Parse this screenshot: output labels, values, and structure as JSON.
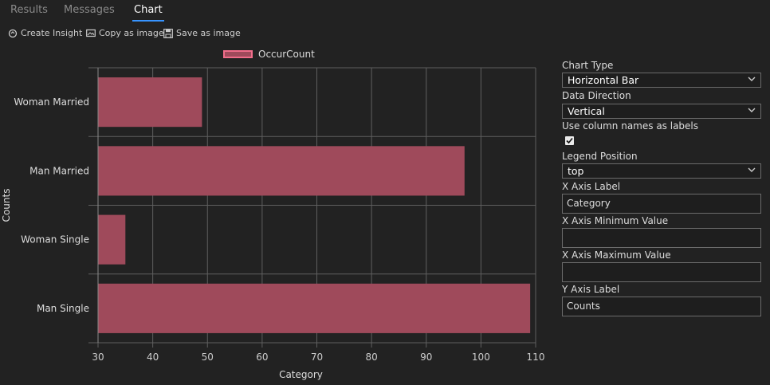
{
  "tabs": [
    {
      "label": "Results",
      "active": false
    },
    {
      "label": "Messages",
      "active": false
    },
    {
      "label": "Chart",
      "active": true
    }
  ],
  "toolbar": {
    "create_insight": "Create Insight",
    "copy_image": "Copy as image",
    "save_image": "Save as image"
  },
  "colors": {
    "accent": "#3794ff",
    "bar_fill": "#9f4a5b",
    "bar_border": "#f06d8a",
    "background": "#222222"
  },
  "chart_data": {
    "type": "bar",
    "orientation": "horizontal",
    "categories": [
      "Woman Married",
      "Man Married",
      "Woman Single",
      "Man Single"
    ],
    "series": [
      {
        "name": "OccurCount",
        "values": [
          49,
          97,
          35,
          109
        ]
      }
    ],
    "xlabel": "Category",
    "ylabel": "Counts",
    "xlim": [
      30,
      110
    ],
    "xticks": [
      30,
      40,
      50,
      60,
      70,
      80,
      90,
      100,
      110
    ],
    "grid": true,
    "legend_position": "top"
  },
  "panel": {
    "chart_type_label": "Chart Type",
    "chart_type_value": "Horizontal Bar",
    "data_direction_label": "Data Direction",
    "data_direction_value": "Vertical",
    "use_column_names_label": "Use column names as labels",
    "use_column_names_checked": true,
    "legend_position_label": "Legend Position",
    "legend_position_value": "top",
    "x_axis_label_label": "X Axis Label",
    "x_axis_label_value": "Category",
    "x_min_label": "X Axis Minimum Value",
    "x_min_value": "",
    "x_max_label": "X Axis Maximum Value",
    "x_max_value": "",
    "y_axis_label_label": "Y Axis Label",
    "y_axis_label_value": "Counts"
  }
}
